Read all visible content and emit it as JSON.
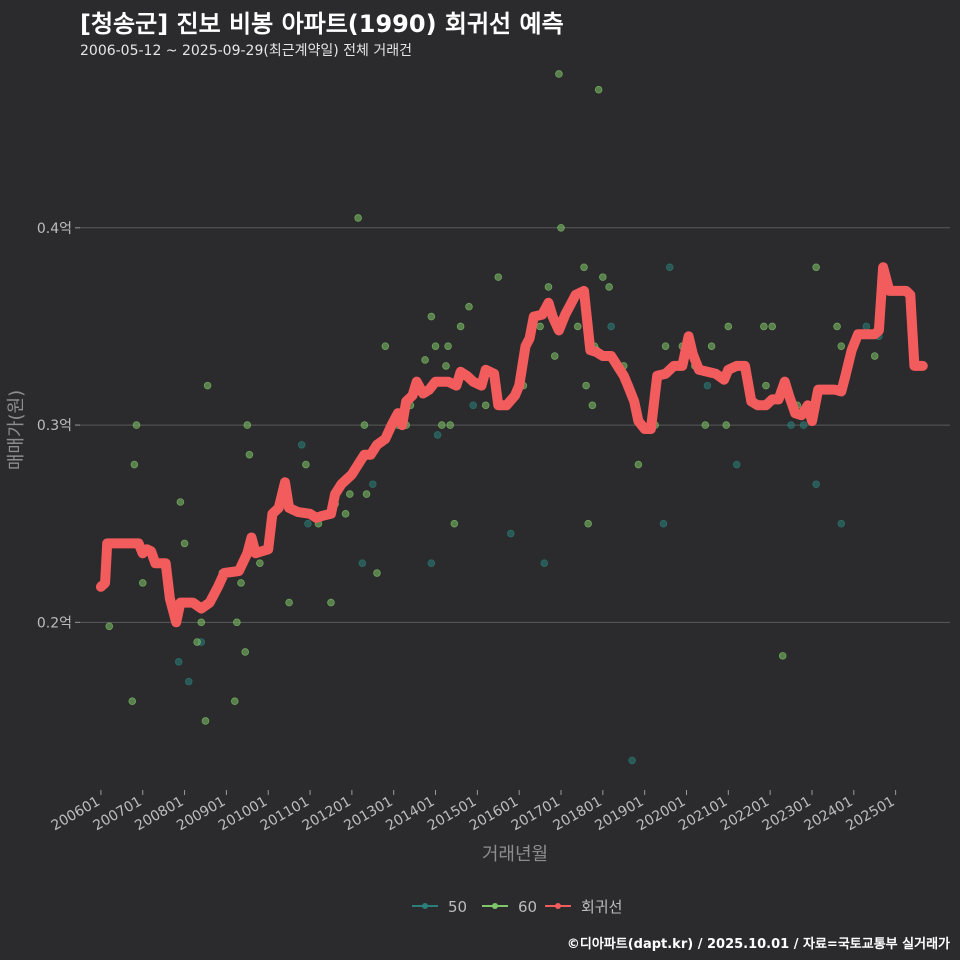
{
  "header": {
    "title": "[청송군] 진보 비봉 아파트(1990) 회귀선 예측",
    "subtitle": "2006-05-12 ~ 2025-09-29(최근계약일) 전체 거래건"
  },
  "footer": {
    "caption": "©디아파트(dapt.kr) / 2025.10.01 / 자료=국토교통부 실거래가"
  },
  "colors": {
    "background": "#2b2a2c",
    "grid": "#5a5a5a",
    "series_50": "#2a7f7a",
    "series_60": "#7fc56a",
    "regression": "#f25c5c"
  },
  "chart_data": {
    "type": "scatter",
    "title": "[청송군] 진보 비봉 아파트(1990) 회귀선 예측",
    "xlabel": "거래년월",
    "ylabel": "매매가(원)",
    "xlim": [
      2005.5,
      2026.3
    ],
    "ylim": [
      0.115,
      0.48
    ],
    "x_ticks": [
      {
        "value": 2006.0,
        "label": "200601"
      },
      {
        "value": 2007.0,
        "label": "200701"
      },
      {
        "value": 2008.0,
        "label": "200801"
      },
      {
        "value": 2009.0,
        "label": "200901"
      },
      {
        "value": 2010.0,
        "label": "201001"
      },
      {
        "value": 2011.0,
        "label": "201101"
      },
      {
        "value": 2012.0,
        "label": "201201"
      },
      {
        "value": 2013.0,
        "label": "201301"
      },
      {
        "value": 2014.0,
        "label": "201401"
      },
      {
        "value": 2015.0,
        "label": "201501"
      },
      {
        "value": 2016.0,
        "label": "201601"
      },
      {
        "value": 2017.0,
        "label": "201701"
      },
      {
        "value": 2018.0,
        "label": "201801"
      },
      {
        "value": 2019.0,
        "label": "201901"
      },
      {
        "value": 2020.0,
        "label": "202001"
      },
      {
        "value": 2021.0,
        "label": "202101"
      },
      {
        "value": 2022.0,
        "label": "202201"
      },
      {
        "value": 2023.0,
        "label": "202301"
      },
      {
        "value": 2024.0,
        "label": "202401"
      },
      {
        "value": 2025.0,
        "label": "202501"
      }
    ],
    "y_ticks": [
      {
        "value": 0.2,
        "label": "0.2억"
      },
      {
        "value": 0.3,
        "label": "0.3억"
      },
      {
        "value": 0.4,
        "label": "0.4억"
      }
    ],
    "legend": [
      "50",
      "60",
      "회귀선"
    ],
    "legend_position": "bottom",
    "series": [
      {
        "name": "50",
        "points": [
          [
            2007.86,
            0.18
          ],
          [
            2008.1,
            0.17
          ],
          [
            2008.4,
            0.19
          ],
          [
            2010.8,
            0.29
          ],
          [
            2010.95,
            0.25
          ],
          [
            2012.25,
            0.23
          ],
          [
            2012.5,
            0.27
          ],
          [
            2013.9,
            0.23
          ],
          [
            2014.05,
            0.295
          ],
          [
            2014.9,
            0.31
          ],
          [
            2015.7,
            0.31
          ],
          [
            2015.8,
            0.245
          ],
          [
            2016.6,
            0.23
          ],
          [
            2018.2,
            0.35
          ],
          [
            2018.7,
            0.13
          ],
          [
            2019.45,
            0.25
          ],
          [
            2019.6,
            0.38
          ],
          [
            2020.5,
            0.32
          ],
          [
            2021.2,
            0.28
          ],
          [
            2022.5,
            0.3
          ],
          [
            2022.8,
            0.3
          ],
          [
            2023.1,
            0.27
          ],
          [
            2023.7,
            0.25
          ],
          [
            2024.3,
            0.35
          ],
          [
            2024.6,
            0.345
          ]
        ]
      },
      {
        "name": "60",
        "points": [
          [
            2006.2,
            0.198
          ],
          [
            2006.75,
            0.16
          ],
          [
            2006.8,
            0.28
          ],
          [
            2006.85,
            0.3
          ],
          [
            2007.0,
            0.22
          ],
          [
            2007.9,
            0.261
          ],
          [
            2008.0,
            0.24
          ],
          [
            2008.3,
            0.19
          ],
          [
            2008.4,
            0.2
          ],
          [
            2008.5,
            0.15
          ],
          [
            2008.55,
            0.32
          ],
          [
            2008.9,
            0.225
          ],
          [
            2009.2,
            0.16
          ],
          [
            2009.25,
            0.2
          ],
          [
            2009.35,
            0.22
          ],
          [
            2009.45,
            0.185
          ],
          [
            2009.5,
            0.3
          ],
          [
            2009.55,
            0.285
          ],
          [
            2009.8,
            0.23
          ],
          [
            2010.5,
            0.21
          ],
          [
            2010.9,
            0.28
          ],
          [
            2011.2,
            0.25
          ],
          [
            2011.5,
            0.21
          ],
          [
            2011.6,
            0.26
          ],
          [
            2011.85,
            0.255
          ],
          [
            2011.95,
            0.265
          ],
          [
            2012.15,
            0.405
          ],
          [
            2012.3,
            0.3
          ],
          [
            2012.35,
            0.265
          ],
          [
            2012.6,
            0.225
          ],
          [
            2012.8,
            0.34
          ],
          [
            2013.1,
            0.3
          ],
          [
            2013.3,
            0.3
          ],
          [
            2013.4,
            0.31
          ],
          [
            2013.75,
            0.333
          ],
          [
            2013.9,
            0.355
          ],
          [
            2014.0,
            0.34
          ],
          [
            2014.15,
            0.3
          ],
          [
            2014.25,
            0.33
          ],
          [
            2014.3,
            0.34
          ],
          [
            2014.35,
            0.3
          ],
          [
            2014.45,
            0.25
          ],
          [
            2014.6,
            0.35
          ],
          [
            2014.8,
            0.36
          ],
          [
            2015.1,
            0.32
          ],
          [
            2015.2,
            0.31
          ],
          [
            2015.5,
            0.375
          ],
          [
            2016.1,
            0.32
          ],
          [
            2016.3,
            0.35
          ],
          [
            2016.5,
            0.35
          ],
          [
            2016.7,
            0.37
          ],
          [
            2016.85,
            0.335
          ],
          [
            2016.95,
            0.478
          ],
          [
            2017.0,
            0.4
          ],
          [
            2017.2,
            0.36
          ],
          [
            2017.4,
            0.35
          ],
          [
            2017.55,
            0.38
          ],
          [
            2017.6,
            0.32
          ],
          [
            2017.65,
            0.25
          ],
          [
            2017.75,
            0.31
          ],
          [
            2017.8,
            0.34
          ],
          [
            2017.85,
            0.338
          ],
          [
            2017.9,
            0.47
          ],
          [
            2018.0,
            0.375
          ],
          [
            2018.15,
            0.37
          ],
          [
            2018.5,
            0.33
          ],
          [
            2018.85,
            0.28
          ],
          [
            2019.25,
            0.3
          ],
          [
            2019.5,
            0.34
          ],
          [
            2019.9,
            0.34
          ],
          [
            2020.2,
            0.33
          ],
          [
            2020.45,
            0.3
          ],
          [
            2020.6,
            0.34
          ],
          [
            2020.95,
            0.3
          ],
          [
            2021.0,
            0.35
          ],
          [
            2021.85,
            0.35
          ],
          [
            2021.9,
            0.32
          ],
          [
            2022.05,
            0.35
          ],
          [
            2022.3,
            0.183
          ],
          [
            2022.65,
            0.31
          ],
          [
            2023.1,
            0.38
          ],
          [
            2023.6,
            0.35
          ],
          [
            2023.7,
            0.34
          ],
          [
            2024.5,
            0.335
          ]
        ]
      },
      {
        "name": "회귀선",
        "points": [
          [
            2006.0,
            0.218
          ],
          [
            2006.1,
            0.22
          ],
          [
            2006.15,
            0.24
          ],
          [
            2006.5,
            0.24
          ],
          [
            2006.9,
            0.24
          ],
          [
            2007.0,
            0.235
          ],
          [
            2007.1,
            0.237
          ],
          [
            2007.2,
            0.236
          ],
          [
            2007.3,
            0.23
          ],
          [
            2007.45,
            0.23
          ],
          [
            2007.55,
            0.23
          ],
          [
            2007.65,
            0.212
          ],
          [
            2007.8,
            0.2
          ],
          [
            2007.9,
            0.21
          ],
          [
            2008.0,
            0.21
          ],
          [
            2008.2,
            0.21
          ],
          [
            2008.4,
            0.207
          ],
          [
            2008.6,
            0.21
          ],
          [
            2008.8,
            0.218
          ],
          [
            2008.95,
            0.225
          ],
          [
            2009.3,
            0.226
          ],
          [
            2009.5,
            0.235
          ],
          [
            2009.6,
            0.243
          ],
          [
            2009.7,
            0.235
          ],
          [
            2009.85,
            0.236
          ],
          [
            2010.0,
            0.237
          ],
          [
            2010.1,
            0.255
          ],
          [
            2010.25,
            0.258
          ],
          [
            2010.4,
            0.271
          ],
          [
            2010.5,
            0.258
          ],
          [
            2010.7,
            0.256
          ],
          [
            2011.0,
            0.255
          ],
          [
            2011.15,
            0.253
          ],
          [
            2011.3,
            0.254
          ],
          [
            2011.5,
            0.255
          ],
          [
            2011.6,
            0.265
          ],
          [
            2011.75,
            0.27
          ],
          [
            2011.9,
            0.273
          ],
          [
            2012.0,
            0.275
          ],
          [
            2012.15,
            0.28
          ],
          [
            2012.3,
            0.285
          ],
          [
            2012.45,
            0.285
          ],
          [
            2012.6,
            0.29
          ],
          [
            2012.8,
            0.293
          ],
          [
            2012.95,
            0.3
          ],
          [
            2013.1,
            0.306
          ],
          [
            2013.2,
            0.3
          ],
          [
            2013.3,
            0.312
          ],
          [
            2013.45,
            0.315
          ],
          [
            2013.55,
            0.322
          ],
          [
            2013.7,
            0.316
          ],
          [
            2013.85,
            0.318
          ],
          [
            2014.0,
            0.322
          ],
          [
            2014.3,
            0.322
          ],
          [
            2014.5,
            0.32
          ],
          [
            2014.6,
            0.327
          ],
          [
            2014.75,
            0.325
          ],
          [
            2014.9,
            0.322
          ],
          [
            2015.1,
            0.32
          ],
          [
            2015.2,
            0.328
          ],
          [
            2015.4,
            0.326
          ],
          [
            2015.5,
            0.31
          ],
          [
            2015.7,
            0.31
          ],
          [
            2015.9,
            0.315
          ],
          [
            2016.0,
            0.32
          ],
          [
            2016.15,
            0.34
          ],
          [
            2016.25,
            0.344
          ],
          [
            2016.35,
            0.355
          ],
          [
            2016.55,
            0.356
          ],
          [
            2016.7,
            0.362
          ],
          [
            2016.8,
            0.355
          ],
          [
            2016.95,
            0.348
          ],
          [
            2017.1,
            0.356
          ],
          [
            2017.2,
            0.36
          ],
          [
            2017.35,
            0.366
          ],
          [
            2017.55,
            0.368
          ],
          [
            2017.7,
            0.338
          ],
          [
            2017.85,
            0.337
          ],
          [
            2018.0,
            0.335
          ],
          [
            2018.2,
            0.335
          ],
          [
            2018.35,
            0.33
          ],
          [
            2018.5,
            0.325
          ],
          [
            2018.6,
            0.32
          ],
          [
            2018.75,
            0.312
          ],
          [
            2018.85,
            0.302
          ],
          [
            2019.0,
            0.298
          ],
          [
            2019.15,
            0.298
          ],
          [
            2019.3,
            0.325
          ],
          [
            2019.5,
            0.326
          ],
          [
            2019.7,
            0.33
          ],
          [
            2019.9,
            0.33
          ],
          [
            2020.05,
            0.345
          ],
          [
            2020.15,
            0.336
          ],
          [
            2020.3,
            0.328
          ],
          [
            2020.5,
            0.327
          ],
          [
            2020.7,
            0.326
          ],
          [
            2020.9,
            0.323
          ],
          [
            2021.0,
            0.328
          ],
          [
            2021.2,
            0.33
          ],
          [
            2021.4,
            0.33
          ],
          [
            2021.55,
            0.312
          ],
          [
            2021.7,
            0.31
          ],
          [
            2021.9,
            0.31
          ],
          [
            2022.05,
            0.313
          ],
          [
            2022.2,
            0.313
          ],
          [
            2022.35,
            0.322
          ],
          [
            2022.45,
            0.315
          ],
          [
            2022.6,
            0.306
          ],
          [
            2022.75,
            0.305
          ],
          [
            2022.9,
            0.31
          ],
          [
            2023.0,
            0.302
          ],
          [
            2023.15,
            0.318
          ],
          [
            2023.35,
            0.318
          ],
          [
            2023.55,
            0.318
          ],
          [
            2023.7,
            0.317
          ],
          [
            2023.8,
            0.325
          ],
          [
            2023.95,
            0.338
          ],
          [
            2024.1,
            0.346
          ],
          [
            2024.3,
            0.346
          ],
          [
            2024.5,
            0.346
          ],
          [
            2024.6,
            0.348
          ],
          [
            2024.7,
            0.38
          ],
          [
            2024.85,
            0.368
          ],
          [
            2025.0,
            0.368
          ],
          [
            2025.25,
            0.368
          ],
          [
            2025.35,
            0.366
          ],
          [
            2025.45,
            0.33
          ],
          [
            2025.65,
            0.33
          ]
        ]
      }
    ]
  }
}
